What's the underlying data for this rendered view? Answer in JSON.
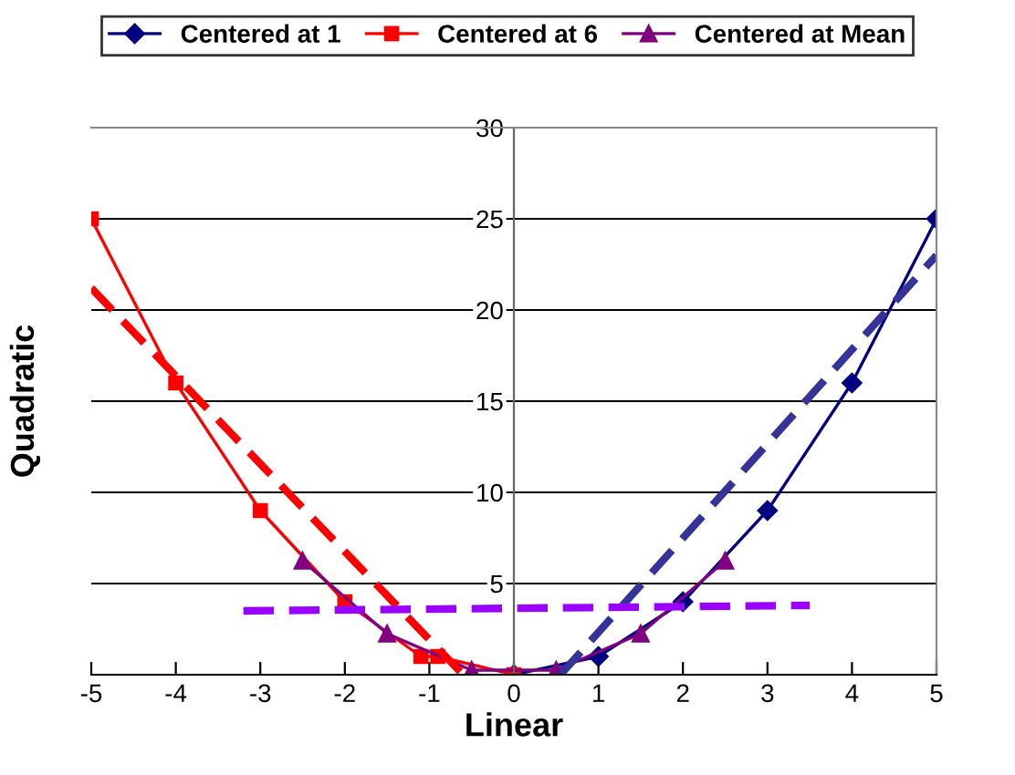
{
  "chart_data": {
    "type": "line",
    "xlabel": "Linear",
    "ylabel": "Quadratic",
    "xlim": [
      -5,
      5
    ],
    "xticks": [
      -5,
      -4,
      -3,
      -2,
      -1,
      0,
      1,
      2,
      3,
      4,
      5
    ],
    "ylim": [
      0,
      30
    ],
    "yticks": [
      {
        "value": 0,
        "label": null
      },
      5,
      10,
      15,
      20,
      25,
      30
    ],
    "grid": "y",
    "legend": "top",
    "series": [
      {
        "name": "Centered at 1",
        "color": "#000080",
        "marker": "diamond",
        "x": [
          0,
          1,
          2,
          3,
          4,
          5
        ],
        "values": [
          0,
          1,
          4,
          9,
          16,
          25
        ]
      },
      {
        "name": "Centered at 6",
        "color": "#ff0000",
        "marker": "square",
        "x": [
          -5,
          -4,
          -3,
          -2,
          -1.1,
          -0.9,
          0
        ],
        "values": [
          25,
          16,
          9,
          4,
          1,
          1,
          0
        ]
      },
      {
        "name": "Centered at Mean",
        "color": "#800080",
        "marker": "triangle",
        "x": [
          -2.5,
          -1.5,
          -0.5,
          0.5,
          1.5,
          2.5
        ],
        "values": [
          6.25,
          2.25,
          0.25,
          0.25,
          2.25,
          6.25
        ]
      },
      {
        "color": "#333399",
        "line_style": "dashed",
        "marker": "none",
        "x": [
          0.55,
          5
        ],
        "values": [
          0,
          23
        ]
      },
      {
        "color": "#ff0000",
        "line_style": "dashed",
        "marker": "none",
        "x": [
          -5,
          -0.6
        ],
        "values": [
          21.2,
          0
        ]
      },
      {
        "color": "#9900ff",
        "line_style": "dashed",
        "marker": "none",
        "x": [
          -3.2,
          3.5
        ],
        "values": [
          3.5,
          3.8
        ]
      }
    ]
  }
}
